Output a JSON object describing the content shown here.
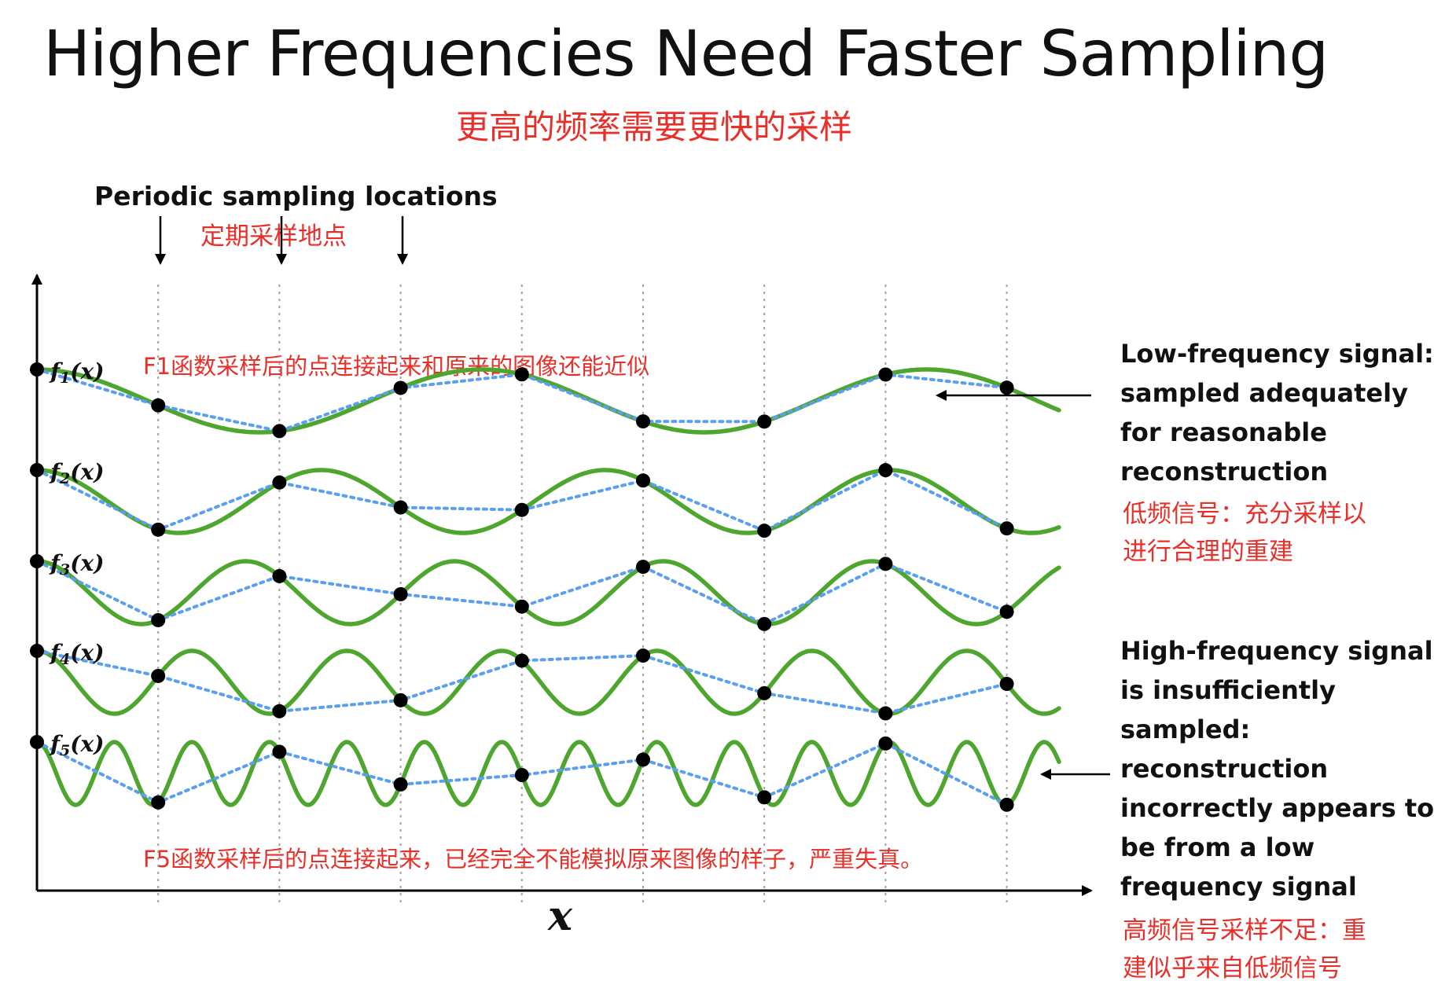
{
  "title": "Higher Frequencies Need Faster Sampling",
  "title_cn": "更高的频率需要更快的采样",
  "sampling_label": "Periodic sampling locations",
  "sampling_label_cn": "定期采样地点",
  "note_f1": "F1函数采样后的点连接起来和原来的图像还能近似",
  "note_f5": "F5函数采样后的点连接起来，已经完全不能模拟原来图像的样子，严重失真。",
  "axis_x_label": "x",
  "low_freq": {
    "lines": [
      "Low-frequency signal:",
      "sampled adequately",
      "for reasonable",
      "reconstruction"
    ],
    "cn_lines": [
      "低频信号：充分采样以",
      "进行合理的重建"
    ]
  },
  "high_freq": {
    "lines": [
      "High-frequency signal",
      "is insufficiently",
      "sampled:",
      "reconstruction",
      "incorrectly appears to",
      "be from a low",
      "frequency signal"
    ],
    "cn_lines": [
      "高频信号采样不足：重",
      "建似乎来自低频信号"
    ]
  },
  "signals": [
    {
      "label_f": "f",
      "label_sub": "1",
      "label_arg": "(x)",
      "cycles": 2.3
    },
    {
      "label_f": "f",
      "label_sub": "2",
      "label_arg": "(x)",
      "cycles": 3.6
    },
    {
      "label_f": "f",
      "label_sub": "3",
      "label_arg": "(x)",
      "cycles": 4.9
    },
    {
      "label_f": "f",
      "label_sub": "4",
      "label_arg": "(x)",
      "cycles": 6.6
    },
    {
      "label_f": "f",
      "label_sub": "5",
      "label_arg": "(x)",
      "cycles": 13.2
    }
  ],
  "colors": {
    "signal": "#4ea62f",
    "reconstruction": "#5b9ff0",
    "sample": "#000000",
    "annotation": "#e8302a",
    "grid": "#a0a0a0"
  }
}
